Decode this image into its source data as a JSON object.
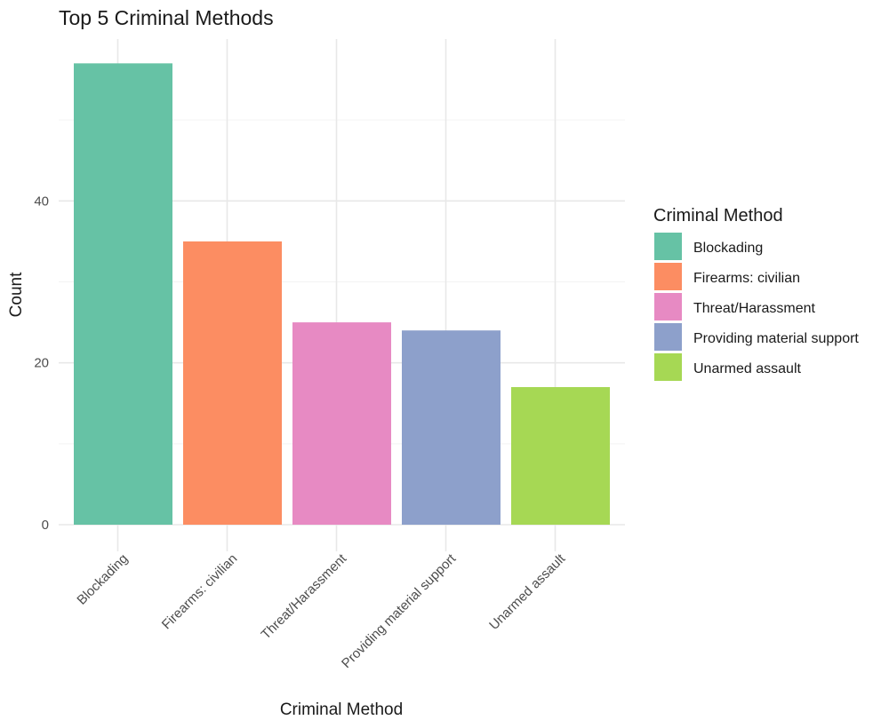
{
  "chart_data": {
    "type": "bar",
    "title": "Top 5 Criminal Methods",
    "xlabel": "Criminal Method",
    "ylabel": "Count",
    "categories": [
      "Blockading",
      "Firearms: civilian",
      "Threat/Harassment",
      "Providing material support",
      "Unarmed assault"
    ],
    "values": [
      57,
      35,
      25,
      24,
      17
    ],
    "colors": [
      "#66c2a5",
      "#fc8d62",
      "#e78ac3",
      "#8da0cb",
      "#a6d854"
    ],
    "ylim": [
      0,
      60
    ],
    "yticks": [
      0,
      20,
      40
    ],
    "yticks_minor": [
      10,
      30,
      50
    ],
    "grid": true,
    "legend": {
      "title": "Criminal Method",
      "position": "right",
      "entries": [
        "Blockading",
        "Firearms: civilian",
        "Threat/Harassment",
        "Providing material support",
        "Unarmed assault"
      ]
    }
  }
}
